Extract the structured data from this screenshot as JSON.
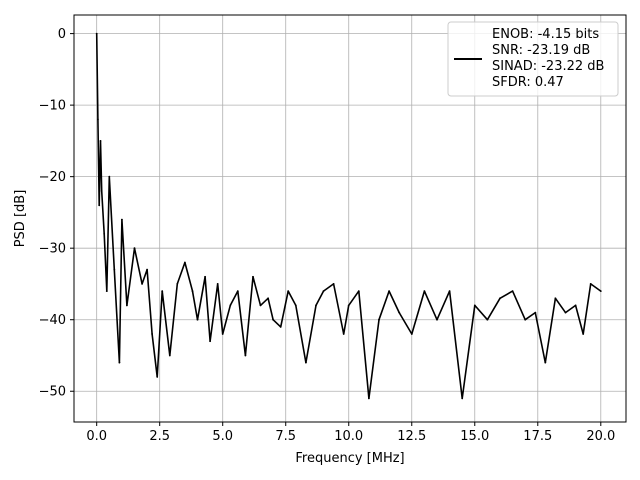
{
  "chart_data": {
    "type": "line",
    "title": "",
    "xlabel": "Frequency [MHz]",
    "ylabel": "PSD [dB]",
    "xlim": [
      -0.9,
      21.0
    ],
    "ylim": [
      -54.3,
      2.6
    ],
    "xticks": [
      0.0,
      2.5,
      5.0,
      7.5,
      10.0,
      12.5,
      15.0,
      17.5,
      20.0
    ],
    "xtick_labels": [
      "0.0",
      "2.5",
      "5.0",
      "7.5",
      "10.0",
      "12.5",
      "15.0",
      "17.5",
      "20.0"
    ],
    "yticks": [
      0,
      -10,
      -20,
      -30,
      -40,
      -50
    ],
    "ytick_labels": [
      "0",
      "−10",
      "−20",
      "−30",
      "−40",
      "−50"
    ],
    "grid": true,
    "legend_position": "top-right",
    "legend_entries": [
      "ENOB: -4.15 bits",
      "SNR: -23.19 dB",
      "SINAD: -23.22 dB",
      "SFDR: 0.47"
    ],
    "series": [
      {
        "name": "ENOB: -4.15 bits\nSNR: -23.19 dB\nSINAD: -23.22 dB\nSFDR: 0.47",
        "color": "#000000",
        "x": [
          0.0,
          0.05,
          0.1,
          0.15,
          0.2,
          0.3,
          0.4,
          0.5,
          0.7,
          0.9,
          1.0,
          1.2,
          1.5,
          1.8,
          2.0,
          2.2,
          2.4,
          2.6,
          2.9,
          3.2,
          3.5,
          3.8,
          4.0,
          4.3,
          4.5,
          4.8,
          5.0,
          5.3,
          5.6,
          5.9,
          6.2,
          6.5,
          6.8,
          7.0,
          7.3,
          7.6,
          7.9,
          8.3,
          8.7,
          9.0,
          9.4,
          9.8,
          10.0,
          10.4,
          10.8,
          11.2,
          11.6,
          12.0,
          12.5,
          13.0,
          13.5,
          14.0,
          14.5,
          15.0,
          15.5,
          16.0,
          16.5,
          17.0,
          17.4,
          17.8,
          18.2,
          18.6,
          19.0,
          19.3,
          19.6,
          20.0
        ],
        "values": [
          0.0,
          -12,
          -24,
          -15,
          -22,
          -28,
          -36,
          -20,
          -33,
          -46,
          -26,
          -38,
          -30,
          -35,
          -33,
          -42,
          -48,
          -36,
          -45,
          -35,
          -32,
          -36,
          -40,
          -34,
          -43,
          -35,
          -42,
          -38,
          -36,
          -45,
          -34,
          -38,
          -37,
          -40,
          -41,
          -36,
          -38,
          -46,
          -38,
          -36,
          -35,
          -42,
          -38,
          -36,
          -51,
          -40,
          -36,
          -39,
          -42,
          -36,
          -40,
          -36,
          -51,
          -38,
          -40,
          -37,
          -36,
          -40,
          -39,
          -46,
          -37,
          -39,
          -38,
          -42,
          -35,
          -36
        ]
      }
    ]
  }
}
